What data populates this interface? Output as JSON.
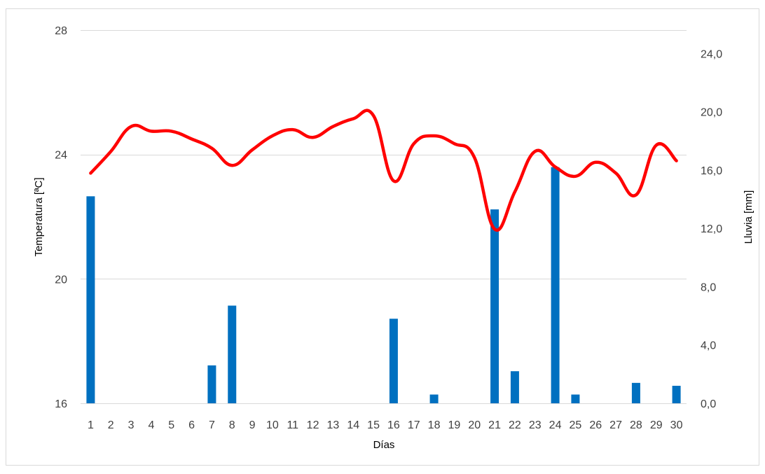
{
  "chart_data": {
    "type": "bar+line",
    "title": "",
    "x": [
      "1",
      "2",
      "3",
      "4",
      "5",
      "6",
      "7",
      "8",
      "9",
      "10",
      "11",
      "12",
      "13",
      "14",
      "15",
      "16",
      "17",
      "18",
      "19",
      "20",
      "21",
      "22",
      "23",
      "24",
      "25",
      "26",
      "27",
      "28",
      "29",
      "30"
    ],
    "xlabel": "Días",
    "y_left": {
      "label": "Temperatura [ªC]",
      "range": [
        16,
        28
      ],
      "ticks": [
        "16",
        "20",
        "24",
        "28"
      ]
    },
    "y_right": {
      "label": "Lluvia [mm]",
      "range": [
        0,
        25.6
      ],
      "ticks": [
        "0,0",
        "4,0",
        "8,0",
        "12,0",
        "16,0",
        "20,0",
        "24,0"
      ]
    },
    "grid": true,
    "legend": "none",
    "series": [
      {
        "type": "bar",
        "axis": "right",
        "color": "#0070C0",
        "values": [
          14.2,
          0,
          0,
          0,
          0,
          0,
          2.6,
          6.7,
          0,
          0,
          0,
          0,
          0,
          0,
          0,
          5.8,
          0,
          0.6,
          0,
          0,
          13.3,
          2.2,
          0,
          16.2,
          0.6,
          0,
          0,
          1.4,
          0,
          1.2
        ]
      },
      {
        "type": "line",
        "axis": "left",
        "color": "#FF0000",
        "values": [
          23.4,
          24.1,
          24.9,
          24.75,
          24.75,
          24.5,
          24.2,
          23.65,
          24.15,
          24.6,
          24.8,
          24.55,
          24.9,
          25.15,
          25.25,
          23.15,
          24.35,
          24.6,
          24.35,
          23.9,
          21.6,
          22.8,
          24.1,
          23.6,
          23.3,
          23.75,
          23.4,
          22.7,
          24.3,
          23.8
        ]
      }
    ]
  }
}
